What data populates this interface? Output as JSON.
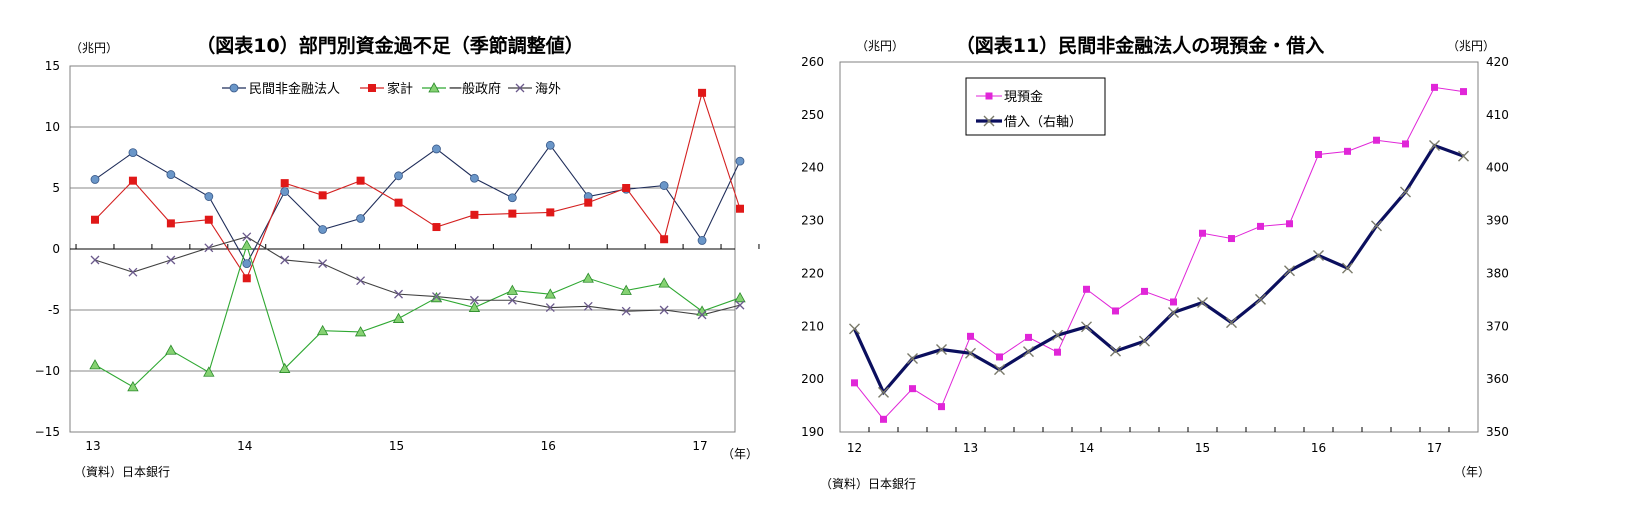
{
  "chart_data": [
    {
      "type": "line",
      "title": "（図表10）部門別資金過不足（季節調整値）",
      "unit_label": "（兆円）",
      "source": "（資料）日本銀行",
      "year_unit": "（年）",
      "x": [
        "13Q1",
        "13Q2",
        "13Q3",
        "13Q4",
        "14Q1",
        "14Q2",
        "14Q3",
        "14Q4",
        "15Q1",
        "15Q2",
        "15Q3",
        "15Q4",
        "16Q1",
        "16Q2",
        "16Q3",
        "16Q4",
        "17Q1",
        "17Q2"
      ],
      "x_tick_labels": [
        "13",
        "14",
        "15",
        "16",
        "17"
      ],
      "ylim": [
        -15,
        15
      ],
      "y_ticks": [
        15,
        10,
        5,
        0,
        -5,
        -10,
        -15
      ],
      "y_tick_labels": [
        "15",
        "10",
        "5",
        "0",
        "-5",
        "−10",
        "−15"
      ],
      "grid": true,
      "legend_position": "top",
      "series": [
        {
          "name": "民間非金融法人",
          "color": "#1f2d5a",
          "marker_color": "#6a96c8",
          "marker": "circle",
          "values": [
            5.7,
            7.9,
            6.1,
            4.3,
            -1.2,
            4.7,
            1.6,
            2.5,
            6.0,
            8.2,
            5.8,
            4.2,
            8.5,
            4.3,
            4.9,
            5.2,
            0.7,
            7.2
          ]
        },
        {
          "name": "家計",
          "color": "#d42020",
          "marker_color": "#e01818",
          "marker": "square",
          "values": [
            2.4,
            5.6,
            2.1,
            2.4,
            -2.4,
            5.4,
            4.4,
            5.6,
            3.8,
            1.8,
            2.8,
            2.9,
            3.0,
            3.8,
            5.0,
            0.8,
            12.8,
            3.3
          ]
        },
        {
          "name": "一般政府",
          "color": "#2fa832",
          "marker_color": "#86d273",
          "marker": "triangle",
          "values": [
            -9.5,
            -11.3,
            -8.3,
            -10.1,
            0.3,
            -9.8,
            -6.7,
            -6.8,
            -5.7,
            -4.0,
            -4.8,
            -3.4,
            -3.7,
            -2.4,
            -3.4,
            -2.8,
            -5.1,
            -4.0
          ]
        },
        {
          "name": "海外",
          "color": "#404040",
          "marker_color": "#6b5a8c",
          "marker": "x",
          "values": [
            -0.9,
            -1.9,
            -0.9,
            0.1,
            1.0,
            -0.9,
            -1.2,
            -2.6,
            -3.7,
            -3.9,
            -4.2,
            -4.2,
            -4.8,
            -4.7,
            -5.1,
            -5.0,
            -5.4,
            -4.6
          ]
        }
      ]
    },
    {
      "type": "line",
      "title": "（図表11）民間非金融法人の現預金・借入",
      "left_unit_label": "（兆円）",
      "right_unit_label": "（兆円）",
      "source": "（資料）日本銀行",
      "year_unit": "（年）",
      "x": [
        "12Q1",
        "12Q2",
        "12Q3",
        "12Q4",
        "13Q1",
        "13Q2",
        "13Q3",
        "13Q4",
        "14Q1",
        "14Q2",
        "14Q3",
        "14Q4",
        "15Q1",
        "15Q2",
        "15Q3",
        "15Q4",
        "16Q1",
        "16Q2",
        "16Q3",
        "16Q4",
        "17Q1",
        "17Q2"
      ],
      "x_tick_labels": [
        "12",
        "13",
        "14",
        "15",
        "16",
        "17"
      ],
      "ylim_left": [
        190,
        260
      ],
      "ylim_right": [
        350,
        420
      ],
      "y_ticks_left": [
        "260",
        "250",
        "240",
        "230",
        "220",
        "210",
        "200",
        "190"
      ],
      "y_ticks_right": [
        "420",
        "410",
        "400",
        "390",
        "380",
        "370",
        "360",
        "350"
      ],
      "grid": false,
      "legend_position": "top-left",
      "series": [
        {
          "name": "現預金",
          "axis": "left",
          "color": "#e026d8",
          "marker": "square",
          "values": [
            199.3,
            192.4,
            198.2,
            194.8,
            208.1,
            204.2,
            207.9,
            205.1,
            217.0,
            212.9,
            216.6,
            214.6,
            227.6,
            226.6,
            228.9,
            229.4,
            242.5,
            243.1,
            245.2,
            244.5,
            255.2,
            254.4
          ]
        },
        {
          "name": "借入（右軸）",
          "axis": "right",
          "color": "#0b0f5e",
          "marker": "x",
          "values": [
            369.5,
            357.5,
            363.9,
            365.6,
            364.9,
            361.8,
            365.2,
            368.3,
            369.9,
            365.3,
            367.2,
            372.6,
            374.5,
            370.7,
            375.1,
            380.5,
            383.4,
            381.0,
            389.0,
            395.4,
            404.2,
            402.2
          ]
        }
      ]
    }
  ]
}
